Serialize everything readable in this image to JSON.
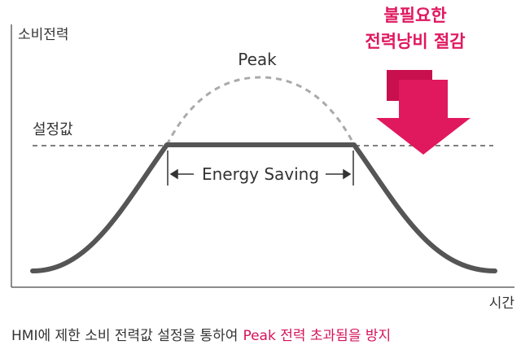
{
  "axes": {
    "y_label": "소비전력",
    "x_label": "시간"
  },
  "labels": {
    "peak": "Peak",
    "setpoint": "설정값",
    "energy_saving": "Energy Saving"
  },
  "callout": {
    "lines": [
      "불필요한",
      "전력낭비 절감"
    ]
  },
  "caption": {
    "text": "HMI에 제한 소비 전력값 설정을 통하여",
    "highlight": "Peak 전력 초과됨을 방지"
  }
}
